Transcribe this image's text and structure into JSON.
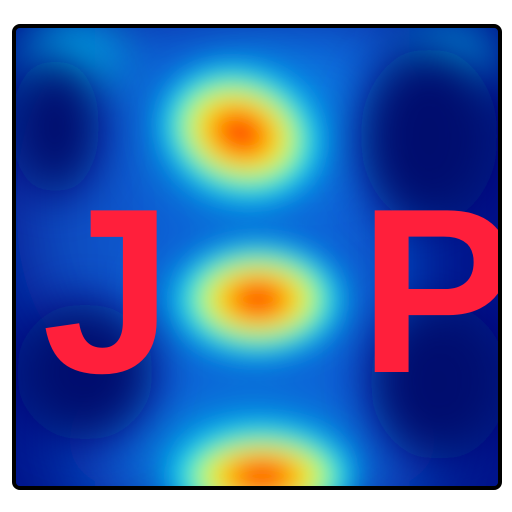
{
  "logo": {
    "letters": [
      "J",
      "P"
    ],
    "letter_color": "#ff1f3b",
    "border_color": "#000000",
    "background_color": "#00128a",
    "style": "jet-colormap-heatmap"
  }
}
